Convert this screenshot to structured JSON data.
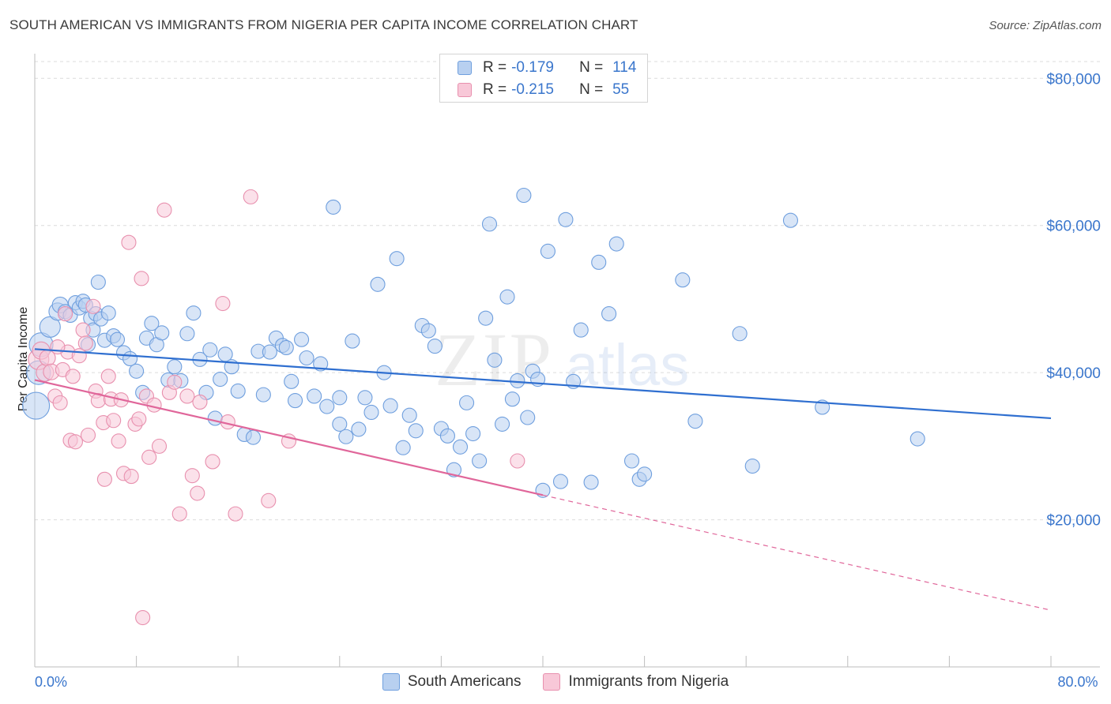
{
  "title": "SOUTH AMERICAN VS IMMIGRANTS FROM NIGERIA PER CAPITA INCOME CORRELATION CHART",
  "source": "Source: ZipAtlas.com",
  "watermark": {
    "zip": "ZIP",
    "atlas": "atlas"
  },
  "stats": {
    "r_label": "R =",
    "n_label": "N =",
    "rows": [
      {
        "r": "-0.179",
        "n": "114"
      },
      {
        "r": "-0.215",
        "n": "55"
      }
    ]
  },
  "chart_data": {
    "type": "scatter",
    "ylabel": "Per Capita Income",
    "xlim": [
      0,
      80
    ],
    "ylim": [
      0,
      82500
    ],
    "x_tick_labels": [
      {
        "value": 0,
        "label": "0.0%"
      },
      {
        "value": 80,
        "label": "80.0%"
      }
    ],
    "y_ticks": [
      {
        "value": 20000,
        "label": "$20,000"
      },
      {
        "value": 40000,
        "label": "$40,000"
      },
      {
        "value": 60000,
        "label": "$60,000"
      },
      {
        "value": 80000,
        "label": "$80,000"
      }
    ],
    "x_minor_ticks": [
      0,
      8,
      16,
      24,
      32,
      40,
      48,
      56,
      64,
      72,
      80
    ],
    "series": [
      {
        "name": "South Americans",
        "color": "#6f9fde",
        "fill": "#b8d0f0",
        "trend": {
          "x0": 0,
          "y0": 43200,
          "x1": 80,
          "y1": 33800,
          "solid_to": 80
        },
        "points": [
          [
            0.1,
            35500,
            16
          ],
          [
            0.3,
            40000,
            14
          ],
          [
            0.5,
            43800,
            14
          ],
          [
            1.2,
            46200,
            12
          ],
          [
            1.8,
            48300,
            10
          ],
          [
            2.0,
            49200,
            9
          ],
          [
            2.4,
            48300,
            8
          ],
          [
            2.8,
            47800,
            8
          ],
          [
            3.2,
            49500,
            8
          ],
          [
            3.5,
            48800,
            8
          ],
          [
            3.8,
            49700,
            8
          ],
          [
            4.0,
            49200,
            8
          ],
          [
            4.2,
            43800,
            8
          ],
          [
            4.4,
            47400,
            8
          ],
          [
            4.6,
            45800,
            8
          ],
          [
            4.8,
            48000,
            8
          ],
          [
            5.0,
            52300,
            8
          ],
          [
            5.2,
            47300,
            8
          ],
          [
            5.5,
            44400,
            8
          ],
          [
            5.8,
            48100,
            8
          ],
          [
            6.2,
            45000,
            8
          ],
          [
            6.5,
            44500,
            8
          ],
          [
            7.0,
            42700,
            8
          ],
          [
            7.5,
            41900,
            8
          ],
          [
            8.0,
            40200,
            8
          ],
          [
            8.5,
            37300,
            8
          ],
          [
            8.8,
            44700,
            8
          ],
          [
            9.2,
            46700,
            8
          ],
          [
            9.6,
            43800,
            8
          ],
          [
            10.0,
            45400,
            8
          ],
          [
            10.5,
            39000,
            8
          ],
          [
            11.0,
            40800,
            8
          ],
          [
            11.5,
            38900,
            8
          ],
          [
            12.0,
            45300,
            8
          ],
          [
            12.5,
            48100,
            8
          ],
          [
            13.0,
            41800,
            8
          ],
          [
            13.5,
            37300,
            8
          ],
          [
            13.8,
            43100,
            8
          ],
          [
            14.2,
            33800,
            8
          ],
          [
            14.6,
            39100,
            8
          ],
          [
            15.0,
            42500,
            8
          ],
          [
            15.5,
            40800,
            8
          ],
          [
            16.0,
            37500,
            8
          ],
          [
            16.5,
            31600,
            8
          ],
          [
            17.2,
            31200,
            8
          ],
          [
            17.6,
            42900,
            8
          ],
          [
            18.0,
            37000,
            8
          ],
          [
            18.5,
            42800,
            8
          ],
          [
            19.0,
            44700,
            8
          ],
          [
            19.5,
            43700,
            8
          ],
          [
            19.8,
            43400,
            8
          ],
          [
            20.2,
            38800,
            8
          ],
          [
            20.5,
            36200,
            8
          ],
          [
            21.0,
            44500,
            8
          ],
          [
            21.4,
            42000,
            8
          ],
          [
            22.0,
            36800,
            8
          ],
          [
            22.5,
            41200,
            8
          ],
          [
            23.0,
            35400,
            8
          ],
          [
            23.5,
            62500,
            8
          ],
          [
            24.0,
            33000,
            8
          ],
          [
            24.5,
            31300,
            8
          ],
          [
            25.0,
            44300,
            8
          ],
          [
            25.5,
            32300,
            8
          ],
          [
            26.0,
            36600,
            8
          ],
          [
            26.5,
            34600,
            8
          ],
          [
            27.0,
            52000,
            8
          ],
          [
            27.5,
            40000,
            8
          ],
          [
            28.0,
            35500,
            8
          ],
          [
            28.5,
            55500,
            8
          ],
          [
            29.0,
            29800,
            8
          ],
          [
            29.5,
            34200,
            8
          ],
          [
            30.0,
            32100,
            8
          ],
          [
            30.5,
            46400,
            8
          ],
          [
            31.0,
            45700,
            8
          ],
          [
            31.5,
            43600,
            8
          ],
          [
            32.0,
            32400,
            8
          ],
          [
            32.5,
            31400,
            8
          ],
          [
            33.0,
            26800,
            8
          ],
          [
            33.5,
            29900,
            8
          ],
          [
            34.0,
            35900,
            8
          ],
          [
            34.5,
            31700,
            8
          ],
          [
            35.0,
            28000,
            8
          ],
          [
            35.5,
            47400,
            8
          ],
          [
            35.8,
            60200,
            8
          ],
          [
            36.2,
            41700,
            8
          ],
          [
            36.8,
            33000,
            8
          ],
          [
            37.2,
            50300,
            8
          ],
          [
            37.6,
            36400,
            8
          ],
          [
            38.0,
            38900,
            8
          ],
          [
            38.5,
            64100,
            8
          ],
          [
            38.8,
            33900,
            8
          ],
          [
            39.2,
            40200,
            8
          ],
          [
            39.6,
            39100,
            8
          ],
          [
            40.0,
            24000,
            8
          ],
          [
            40.4,
            56500,
            8
          ],
          [
            41.4,
            25200,
            8
          ],
          [
            41.8,
            60800,
            8
          ],
          [
            42.4,
            38800,
            8
          ],
          [
            43.0,
            45800,
            8
          ],
          [
            43.8,
            25100,
            8
          ],
          [
            44.4,
            55000,
            8
          ],
          [
            45.2,
            48000,
            8
          ],
          [
            45.8,
            57500,
            8
          ],
          [
            47.0,
            28000,
            8
          ],
          [
            47.6,
            25500,
            8
          ],
          [
            48.0,
            26200,
            8
          ],
          [
            51.0,
            52600,
            8
          ],
          [
            52.0,
            33400,
            8
          ],
          [
            55.5,
            45300,
            8
          ],
          [
            56.5,
            27300,
            8
          ],
          [
            59.5,
            60700,
            8
          ],
          [
            62.0,
            35300,
            8
          ],
          [
            69.5,
            31000,
            8
          ],
          [
            24.0,
            36600,
            8
          ]
        ]
      },
      {
        "name": "Immigrants from Nigeria",
        "color": "#e890ae",
        "fill": "#f8c8d8",
        "trend": {
          "x0": 0,
          "y0": 39000,
          "x1": 80,
          "y1": 7700,
          "solid_to": 40
        },
        "points": [
          [
            0.3,
            41800,
            12
          ],
          [
            0.5,
            43000,
            10
          ],
          [
            0.8,
            40000,
            10
          ],
          [
            1.0,
            42000,
            9
          ],
          [
            1.3,
            40100,
            9
          ],
          [
            1.6,
            36800,
            8
          ],
          [
            2.0,
            35900,
            8
          ],
          [
            2.2,
            40400,
            8
          ],
          [
            2.6,
            42800,
            8
          ],
          [
            2.8,
            30800,
            8
          ],
          [
            3.0,
            39500,
            8
          ],
          [
            3.2,
            30600,
            8
          ],
          [
            3.5,
            42300,
            8
          ],
          [
            3.8,
            45800,
            8
          ],
          [
            4.0,
            44000,
            8
          ],
          [
            4.2,
            31500,
            8
          ],
          [
            4.6,
            49000,
            8
          ],
          [
            4.8,
            37500,
            8
          ],
          [
            5.0,
            36200,
            8
          ],
          [
            5.4,
            33200,
            8
          ],
          [
            5.8,
            39500,
            8
          ],
          [
            6.0,
            36400,
            8
          ],
          [
            6.2,
            33500,
            8
          ],
          [
            6.6,
            30700,
            8
          ],
          [
            6.8,
            36300,
            8
          ],
          [
            7.0,
            26300,
            8
          ],
          [
            7.4,
            57700,
            8
          ],
          [
            7.6,
            25900,
            8
          ],
          [
            7.9,
            33000,
            8
          ],
          [
            8.2,
            33700,
            8
          ],
          [
            8.4,
            52800,
            8
          ],
          [
            8.8,
            36800,
            8
          ],
          [
            9.0,
            28500,
            8
          ],
          [
            9.4,
            35600,
            8
          ],
          [
            9.8,
            30000,
            8
          ],
          [
            10.2,
            62100,
            8
          ],
          [
            10.6,
            37300,
            8
          ],
          [
            11.0,
            38700,
            8
          ],
          [
            11.4,
            20800,
            8
          ],
          [
            12.0,
            36800,
            8
          ],
          [
            12.4,
            26000,
            8
          ],
          [
            12.8,
            23600,
            8
          ],
          [
            13.0,
            36000,
            8
          ],
          [
            14.0,
            27900,
            8
          ],
          [
            14.8,
            49400,
            8
          ],
          [
            15.2,
            33300,
            8
          ],
          [
            15.8,
            20800,
            8
          ],
          [
            17.0,
            63900,
            8
          ],
          [
            18.4,
            22600,
            8
          ],
          [
            20.0,
            30700,
            8
          ],
          [
            38.0,
            28000,
            8
          ],
          [
            8.5,
            6700,
            8
          ],
          [
            5.5,
            25500,
            8
          ],
          [
            1.8,
            43500,
            8
          ],
          [
            2.4,
            48000,
            8
          ]
        ]
      }
    ]
  }
}
